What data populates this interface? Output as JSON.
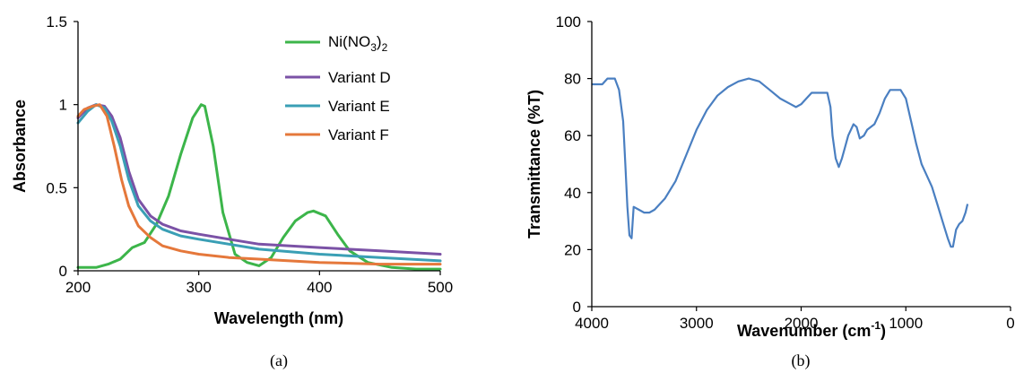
{
  "colors": {
    "ni": "#3cb54a",
    "variant_d": "#7b52a6",
    "variant_e": "#3a9fb5",
    "variant_f": "#e5783b",
    "ir": "#4a7fc1"
  },
  "chart_data": [
    {
      "type": "line",
      "panel_label": "(a)",
      "xlabel": "Wavelength (nm)",
      "ylabel": "Absorbance",
      "xlim": [
        200,
        500
      ],
      "ylim": [
        0,
        1.5
      ],
      "xticks": [
        "200",
        "300",
        "400",
        "500"
      ],
      "yticks": [
        "0",
        "0.5",
        "1",
        "1.5"
      ],
      "grid": false,
      "legend_position": "top-right",
      "legend": {
        "ni_main": "Ni(NO",
        "ni_sub1": "3",
        "ni_close": ")",
        "ni_sub2": "2"
      },
      "series": [
        {
          "name": "Ni(NO3)2",
          "color_key": "ni",
          "points": [
            [
              200,
              0.02
            ],
            [
              215,
              0.02
            ],
            [
              225,
              0.04
            ],
            [
              235,
              0.07
            ],
            [
              245,
              0.14
            ],
            [
              255,
              0.17
            ],
            [
              265,
              0.28
            ],
            [
              275,
              0.45
            ],
            [
              285,
              0.7
            ],
            [
              295,
              0.92
            ],
            [
              302,
              1.0
            ],
            [
              305,
              0.99
            ],
            [
              312,
              0.75
            ],
            [
              320,
              0.35
            ],
            [
              330,
              0.1
            ],
            [
              340,
              0.05
            ],
            [
              350,
              0.03
            ],
            [
              360,
              0.08
            ],
            [
              370,
              0.2
            ],
            [
              380,
              0.3
            ],
            [
              390,
              0.35
            ],
            [
              395,
              0.36
            ],
            [
              405,
              0.33
            ],
            [
              415,
              0.22
            ],
            [
              425,
              0.12
            ],
            [
              440,
              0.05
            ],
            [
              460,
              0.02
            ],
            [
              480,
              0.01
            ],
            [
              500,
              0.01
            ]
          ]
        },
        {
          "name": "Variant D",
          "color_key": "variant_d",
          "points": [
            [
              200,
              0.92
            ],
            [
              208,
              0.98
            ],
            [
              215,
              1.0
            ],
            [
              222,
              0.99
            ],
            [
              228,
              0.93
            ],
            [
              235,
              0.8
            ],
            [
              242,
              0.6
            ],
            [
              250,
              0.43
            ],
            [
              260,
              0.33
            ],
            [
              270,
              0.28
            ],
            [
              285,
              0.24
            ],
            [
              300,
              0.22
            ],
            [
              325,
              0.19
            ],
            [
              350,
              0.16
            ],
            [
              400,
              0.14
            ],
            [
              450,
              0.12
            ],
            [
              500,
              0.1
            ]
          ]
        },
        {
          "name": "Variant E",
          "color_key": "variant_e",
          "points": [
            [
              200,
              0.89
            ],
            [
              208,
              0.96
            ],
            [
              215,
              1.0
            ],
            [
              222,
              0.98
            ],
            [
              228,
              0.9
            ],
            [
              235,
              0.75
            ],
            [
              242,
              0.55
            ],
            [
              250,
              0.39
            ],
            [
              260,
              0.3
            ],
            [
              270,
              0.25
            ],
            [
              285,
              0.21
            ],
            [
              300,
              0.19
            ],
            [
              325,
              0.16
            ],
            [
              350,
              0.13
            ],
            [
              400,
              0.1
            ],
            [
              450,
              0.08
            ],
            [
              500,
              0.06
            ]
          ]
        },
        {
          "name": "Variant F",
          "color_key": "variant_f",
          "points": [
            [
              200,
              0.93
            ],
            [
              205,
              0.97
            ],
            [
              212,
              0.99
            ],
            [
              218,
              1.0
            ],
            [
              224,
              0.93
            ],
            [
              230,
              0.75
            ],
            [
              236,
              0.55
            ],
            [
              242,
              0.39
            ],
            [
              250,
              0.27
            ],
            [
              260,
              0.2
            ],
            [
              270,
              0.15
            ],
            [
              285,
              0.12
            ],
            [
              300,
              0.1
            ],
            [
              325,
              0.08
            ],
            [
              350,
              0.07
            ],
            [
              400,
              0.05
            ],
            [
              450,
              0.04
            ],
            [
              500,
              0.04
            ]
          ]
        }
      ]
    },
    {
      "type": "line",
      "panel_label": "(b)",
      "xlabel_main": "Wavenumber (cm",
      "xlabel_sup": "-1",
      "xlabel_close": ")",
      "ylabel": "Transmittance (%T)",
      "xlim": [
        4000,
        0
      ],
      "ylim": [
        0,
        100
      ],
      "xticks": [
        "4000",
        "3000",
        "2000",
        "1000",
        "0"
      ],
      "yticks": [
        "0",
        "20",
        "40",
        "60",
        "80",
        "100"
      ],
      "grid": false,
      "series": [
        {
          "name": "",
          "color_key": "ir",
          "points": [
            [
              4000,
              78
            ],
            [
              3900,
              78
            ],
            [
              3850,
              80
            ],
            [
              3780,
              80
            ],
            [
              3740,
              76
            ],
            [
              3700,
              65
            ],
            [
              3680,
              50
            ],
            [
              3660,
              35
            ],
            [
              3640,
              25
            ],
            [
              3620,
              24
            ],
            [
              3600,
              35
            ],
            [
              3550,
              34
            ],
            [
              3500,
              33
            ],
            [
              3450,
              33
            ],
            [
              3400,
              34
            ],
            [
              3300,
              38
            ],
            [
              3200,
              44
            ],
            [
              3100,
              53
            ],
            [
              3000,
              62
            ],
            [
              2900,
              69
            ],
            [
              2800,
              74
            ],
            [
              2700,
              77
            ],
            [
              2600,
              79
            ],
            [
              2500,
              80
            ],
            [
              2400,
              79
            ],
            [
              2300,
              76
            ],
            [
              2200,
              73
            ],
            [
              2100,
              71
            ],
            [
              2050,
              70
            ],
            [
              2000,
              71
            ],
            [
              1950,
              73
            ],
            [
              1900,
              75
            ],
            [
              1800,
              75
            ],
            [
              1750,
              75
            ],
            [
              1720,
              70
            ],
            [
              1700,
              60
            ],
            [
              1670,
              52
            ],
            [
              1640,
              49
            ],
            [
              1610,
              52
            ],
            [
              1580,
              56
            ],
            [
              1550,
              60
            ],
            [
              1500,
              64
            ],
            [
              1470,
              63
            ],
            [
              1440,
              59
            ],
            [
              1400,
              60
            ],
            [
              1370,
              62
            ],
            [
              1300,
              64
            ],
            [
              1250,
              68
            ],
            [
              1200,
              73
            ],
            [
              1150,
              76
            ],
            [
              1100,
              76
            ],
            [
              1050,
              76
            ],
            [
              1000,
              73
            ],
            [
              950,
              65
            ],
            [
              900,
              57
            ],
            [
              850,
              50
            ],
            [
              800,
              46
            ],
            [
              750,
              42
            ],
            [
              700,
              36
            ],
            [
              650,
              30
            ],
            [
              600,
              24
            ],
            [
              570,
              21
            ],
            [
              550,
              21
            ],
            [
              520,
              27
            ],
            [
              490,
              29
            ],
            [
              460,
              30
            ],
            [
              430,
              33
            ],
            [
              410,
              36
            ]
          ]
        }
      ]
    }
  ]
}
